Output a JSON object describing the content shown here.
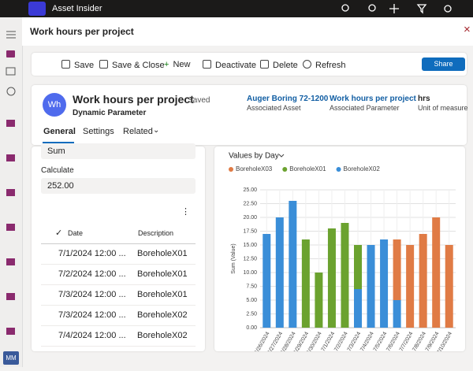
{
  "app": {
    "name": "Asset Insider",
    "user_initials": "MM"
  },
  "form": {
    "title": "Work hours per project"
  },
  "toolbar": [
    "Save",
    "Save & Close",
    "New",
    "Deactivate",
    "Delete",
    "Refresh",
    "Share"
  ],
  "record": {
    "initials": "Wh",
    "name": "Work hours per project",
    "status": "- Saved",
    "entity": "Dynamic Parameter",
    "fields": [
      {
        "value": "Auger Boring 72-1200",
        "label": "Associated Asset"
      },
      {
        "value": "Work hours per project",
        "label": "Associated Parameter"
      },
      {
        "value": "hrs",
        "label": "Unit of measure"
      }
    ]
  },
  "tabs": [
    "General",
    "Settings",
    "Related"
  ],
  "form_fields": {
    "aggregation": "Sum",
    "calculate_label": "Calculate",
    "calculate_value": "252.00"
  },
  "grid": {
    "columns": [
      "Date",
      "Description"
    ],
    "rows": [
      [
        "7/1/2024 12:00 ...",
        "BoreholeX01"
      ],
      [
        "7/2/2024 12:00 ...",
        "BoreholeX01"
      ],
      [
        "7/3/2024 12:00 ...",
        "BoreholeX01"
      ],
      [
        "7/3/2024 12:00 ...",
        "BoreholeX02"
      ],
      [
        "7/4/2024 12:00 ...",
        "BoreholeX02"
      ]
    ]
  },
  "chart_data": {
    "type": "stacked_bar",
    "title": "Values by Day",
    "y_label": "Sum (Value)",
    "categories": [
      "6/26/2024",
      "6/27/2024",
      "6/28/2024",
      "6/29/2024",
      "6/30/2024",
      "7/1/2024",
      "7/2/2024",
      "7/3/2024",
      "7/4/2024",
      "7/5/2024",
      "7/6/2024",
      "7/7/2024",
      "7/8/2024",
      "7/9/2024",
      "7/10/2024"
    ],
    "series": [
      {
        "name": "BoreholeX03",
        "color": "#e07b45",
        "values": [
          null,
          null,
          null,
          null,
          null,
          null,
          null,
          null,
          null,
          null,
          11,
          15,
          17,
          20,
          15
        ]
      },
      {
        "name": "BoreholeX01",
        "color": "#6ba22f",
        "values": [
          null,
          null,
          null,
          16,
          10,
          18,
          19,
          8,
          null,
          null,
          null,
          null,
          null,
          null,
          null
        ]
      },
      {
        "name": "BoreholeX02",
        "color": "#3a8ed8",
        "values": [
          17,
          20,
          23,
          null,
          null,
          null,
          null,
          7,
          15,
          16,
          5,
          null,
          null,
          null,
          null
        ]
      }
    ],
    "ylim": [
      0,
      25
    ],
    "yticks": [
      {
        "value": 0,
        "label": "0.00"
      },
      {
        "value": 2.5,
        "label": "2.50"
      },
      {
        "value": 5,
        "label": "5.00"
      },
      {
        "value": 7.5,
        "label": "7.50"
      },
      {
        "value": 10,
        "label": "10.00"
      },
      {
        "value": 12.5,
        "label": "12.50"
      },
      {
        "value": 15,
        "label": "15.00"
      },
      {
        "value": 17.5,
        "label": "17.50"
      },
      {
        "value": 20,
        "label": "20.00"
      },
      {
        "value": 22.5,
        "label": "22.50"
      },
      {
        "value": 25,
        "label": "25.00"
      }
    ],
    "grid": true
  }
}
